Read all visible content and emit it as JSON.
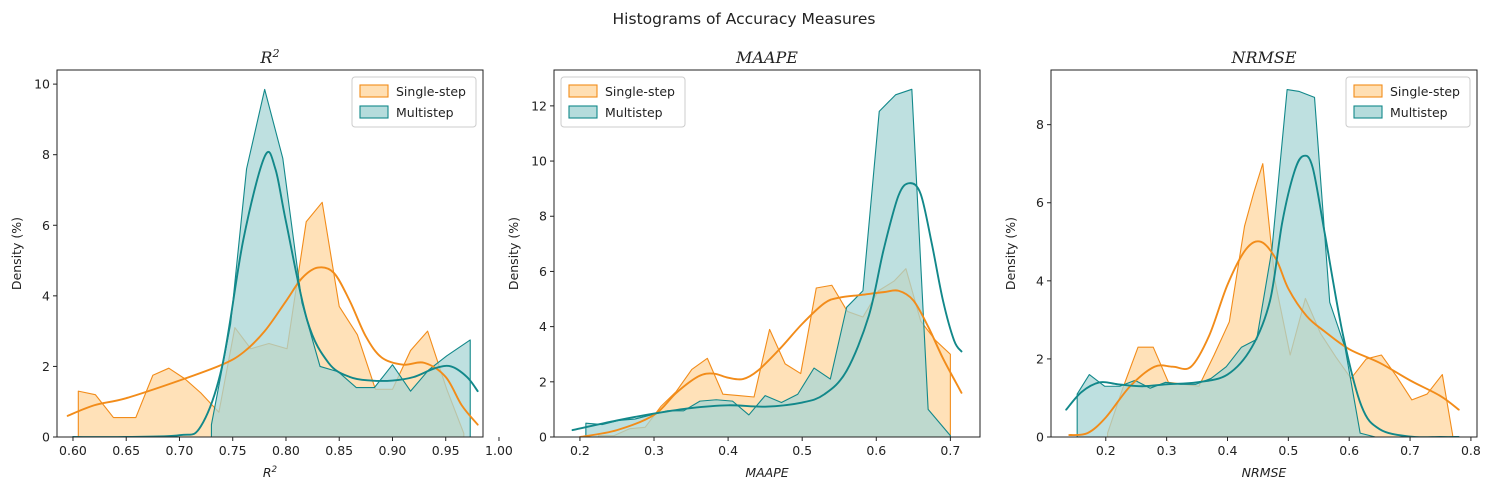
{
  "figure": {
    "suptitle": "Histograms of Accuracy Measures"
  },
  "colors": {
    "single_step_edge": "#f28c1a",
    "single_step_fill": "#ffd9a6",
    "multistep_edge": "#12888a",
    "multistep_fill": "#a8d6d6",
    "kde_single": "#f28c1a",
    "kde_multi": "#12888a"
  },
  "chart_data": [
    {
      "type": "area",
      "title": "R^2",
      "xlabel": "R^2",
      "ylabel": "Density (%)",
      "xlim": [
        0.585,
        0.985
      ],
      "ylim": [
        0,
        10.4
      ],
      "xticks": [
        0.6,
        0.65,
        0.7,
        0.75,
        0.8,
        0.85,
        0.9,
        0.95,
        1.0
      ],
      "xtick_labels": [
        "0.60",
        "0.65",
        "0.70",
        "0.75",
        "0.80",
        "0.85",
        "0.90",
        "0.95",
        "1.00"
      ],
      "yticks": [
        0,
        2,
        4,
        6,
        8,
        10
      ],
      "ytick_labels": [
        "0",
        "2",
        "4",
        "6",
        "8",
        "10"
      ],
      "legend": {
        "position": "upper right",
        "entries": [
          "Single-step",
          "Multistep"
        ]
      },
      "series": [
        {
          "name": "Single-step",
          "kind": "histogram-poly",
          "x": [
            0.605,
            0.605,
            0.621,
            0.638,
            0.659,
            0.675,
            0.69,
            0.705,
            0.72,
            0.737,
            0.752,
            0.767,
            0.784,
            0.801,
            0.819,
            0.834,
            0.85,
            0.867,
            0.884,
            0.9,
            0.917,
            0.933,
            0.951,
            0.967,
            0.967
          ],
          "y": [
            0,
            1.3,
            1.2,
            0.55,
            0.55,
            1.75,
            1.95,
            1.65,
            1.25,
            0.7,
            3.1,
            2.5,
            2.65,
            2.5,
            6.1,
            6.65,
            3.7,
            2.9,
            1.35,
            1.35,
            2.45,
            3.0,
            1.35,
            0.1,
            0
          ]
        },
        {
          "name": "Multistep",
          "kind": "histogram-poly",
          "x": [
            0.73,
            0.73,
            0.748,
            0.763,
            0.78,
            0.797,
            0.815,
            0.832,
            0.849,
            0.866,
            0.883,
            0.9,
            0.917,
            0.934,
            0.951,
            0.973,
            0.973
          ],
          "y": [
            0,
            0.35,
            3.2,
            7.6,
            9.85,
            7.9,
            3.8,
            2.0,
            1.85,
            1.4,
            1.4,
            2.05,
            1.3,
            1.9,
            2.3,
            2.75,
            0
          ]
        },
        {
          "name": "Single-step",
          "kind": "kde",
          "x": [
            0.595,
            0.62,
            0.65,
            0.7,
            0.74,
            0.76,
            0.78,
            0.8,
            0.815,
            0.83,
            0.845,
            0.86,
            0.875,
            0.89,
            0.91,
            0.93,
            0.95,
            0.965,
            0.98
          ],
          "y": [
            0.6,
            0.9,
            1.1,
            1.6,
            2.05,
            2.4,
            3.0,
            3.85,
            4.5,
            4.8,
            4.65,
            3.85,
            2.85,
            2.25,
            2.05,
            2.1,
            1.7,
            0.9,
            0.35
          ]
        },
        {
          "name": "Multistep",
          "kind": "kde",
          "x": [
            0.6,
            0.65,
            0.7,
            0.72,
            0.74,
            0.76,
            0.78,
            0.79,
            0.8,
            0.82,
            0.84,
            0.86,
            0.88,
            0.9,
            0.92,
            0.94,
            0.955,
            0.97,
            0.98
          ],
          "y": [
            0,
            0,
            0.05,
            0.3,
            2.0,
            5.6,
            7.95,
            7.6,
            6.1,
            3.3,
            2.1,
            1.7,
            1.6,
            1.6,
            1.7,
            1.95,
            2.0,
            1.7,
            1.3
          ]
        }
      ]
    },
    {
      "type": "area",
      "title": "MAAPE",
      "xlabel": "MAAPE",
      "ylabel": "Density (%)",
      "xlim": [
        0.165,
        0.74
      ],
      "ylim": [
        0,
        13.3
      ],
      "xticks": [
        0.2,
        0.3,
        0.4,
        0.5,
        0.6,
        0.7
      ],
      "xtick_labels": [
        "0.2",
        "0.3",
        "0.4",
        "0.5",
        "0.6",
        "0.7"
      ],
      "yticks": [
        0,
        2,
        4,
        6,
        8,
        10,
        12
      ],
      "ytick_labels": [
        "0",
        "2",
        "4",
        "6",
        "8",
        "10",
        "12"
      ],
      "legend": {
        "position": "upper left",
        "entries": [
          "Single-step",
          "Multistep"
        ]
      },
      "series": [
        {
          "name": "Single-step",
          "kind": "histogram-poly",
          "x": [
            0.225,
            0.225,
            0.246,
            0.267,
            0.288,
            0.309,
            0.33,
            0.351,
            0.372,
            0.393,
            0.414,
            0.435,
            0.456,
            0.477,
            0.498,
            0.519,
            0.54,
            0.561,
            0.582,
            0.603,
            0.624,
            0.64,
            0.66,
            0.68,
            0.7,
            0.7
          ],
          "y": [
            0,
            0.05,
            0.05,
            0.3,
            0.35,
            1.1,
            1.65,
            2.45,
            2.85,
            1.55,
            1.5,
            1.45,
            3.9,
            2.65,
            2.3,
            5.4,
            5.5,
            4.55,
            4.35,
            5.3,
            5.65,
            6.1,
            4.2,
            3.5,
            3.0,
            0
          ]
        },
        {
          "name": "Multistep",
          "kind": "histogram-poly",
          "x": [
            0.208,
            0.208,
            0.23,
            0.252,
            0.274,
            0.296,
            0.318,
            0.34,
            0.362,
            0.384,
            0.406,
            0.428,
            0.45,
            0.472,
            0.494,
            0.516,
            0.538,
            0.56,
            0.582,
            0.604,
            0.626,
            0.648,
            0.67,
            0.7,
            0.7
          ],
          "y": [
            0,
            0.5,
            0.45,
            0.6,
            0.65,
            0.8,
            0.95,
            0.95,
            1.3,
            1.35,
            1.3,
            0.8,
            1.5,
            1.25,
            1.55,
            2.5,
            2.1,
            4.7,
            5.3,
            11.8,
            12.4,
            12.6,
            1.0,
            0.05,
            0
          ]
        },
        {
          "name": "Single-step",
          "kind": "kde",
          "x": [
            0.2,
            0.25,
            0.3,
            0.33,
            0.36,
            0.38,
            0.4,
            0.42,
            0.44,
            0.47,
            0.5,
            0.53,
            0.55,
            0.58,
            0.61,
            0.63,
            0.65,
            0.67,
            0.69,
            0.71,
            0.715
          ],
          "y": [
            0.0,
            0.25,
            0.8,
            1.6,
            2.2,
            2.3,
            2.15,
            2.1,
            2.4,
            3.2,
            4.1,
            4.85,
            5.05,
            5.15,
            5.25,
            5.3,
            4.95,
            4.0,
            2.85,
            1.85,
            1.6
          ]
        },
        {
          "name": "Multistep",
          "kind": "kde",
          "x": [
            0.19,
            0.25,
            0.3,
            0.35,
            0.4,
            0.45,
            0.5,
            0.53,
            0.56,
            0.59,
            0.61,
            0.63,
            0.645,
            0.66,
            0.675,
            0.69,
            0.705,
            0.715
          ],
          "y": [
            0.25,
            0.6,
            0.85,
            1.05,
            1.15,
            1.1,
            1.25,
            1.55,
            2.4,
            4.4,
            6.8,
            8.75,
            9.2,
            8.8,
            7.0,
            4.95,
            3.5,
            3.1
          ]
        }
      ]
    },
    {
      "type": "area",
      "title": "NRMSE",
      "xlabel": "NRMSE",
      "ylabel": "Density (%)",
      "xlim": [
        0.11,
        0.81
      ],
      "ylim": [
        0,
        9.4
      ],
      "xticks": [
        0.2,
        0.3,
        0.4,
        0.5,
        0.6,
        0.7,
        0.8
      ],
      "xtick_labels": [
        "0.2",
        "0.3",
        "0.4",
        "0.5",
        "0.6",
        "0.7",
        "0.8"
      ],
      "yticks": [
        0,
        2,
        4,
        6,
        8
      ],
      "ytick_labels": [
        "0",
        "2",
        "4",
        "6",
        "8"
      ],
      "legend": {
        "position": "upper right",
        "entries": [
          "Single-step",
          "Multistep"
        ]
      },
      "series": [
        {
          "name": "Single-step",
          "kind": "histogram-poly",
          "x": [
            0.203,
            0.203,
            0.228,
            0.253,
            0.278,
            0.303,
            0.328,
            0.353,
            0.378,
            0.403,
            0.428,
            0.443,
            0.458,
            0.478,
            0.503,
            0.528,
            0.553,
            0.578,
            0.603,
            0.628,
            0.653,
            0.678,
            0.703,
            0.728,
            0.753,
            0.77,
            0.77
          ],
          "y": [
            0,
            0.1,
            1.25,
            2.3,
            2.3,
            1.4,
            1.35,
            1.3,
            2.1,
            2.95,
            5.4,
            6.25,
            7.0,
            4.0,
            2.1,
            3.55,
            2.65,
            2.05,
            1.5,
            2.0,
            2.1,
            1.55,
            0.95,
            1.1,
            1.6,
            0.05,
            0
          ]
        },
        {
          "name": "Multistep",
          "kind": "histogram-poly",
          "x": [
            0.153,
            0.153,
            0.173,
            0.198,
            0.223,
            0.248,
            0.273,
            0.298,
            0.323,
            0.348,
            0.373,
            0.398,
            0.423,
            0.448,
            0.473,
            0.498,
            0.518,
            0.543,
            0.568,
            0.593,
            0.618,
            0.643,
            0.643
          ],
          "y": [
            0,
            1.1,
            1.6,
            1.3,
            1.3,
            1.45,
            1.25,
            1.4,
            1.35,
            1.35,
            1.5,
            1.8,
            2.3,
            2.5,
            4.8,
            8.9,
            8.85,
            8.7,
            3.45,
            2.3,
            0.1,
            0.0,
            0
          ]
        },
        {
          "name": "Single-step",
          "kind": "kde",
          "x": [
            0.14,
            0.17,
            0.2,
            0.24,
            0.28,
            0.31,
            0.34,
            0.37,
            0.4,
            0.43,
            0.455,
            0.48,
            0.5,
            0.53,
            0.56,
            0.6,
            0.65,
            0.7,
            0.75,
            0.78
          ],
          "y": [
            0.05,
            0.1,
            0.5,
            1.3,
            1.8,
            1.8,
            1.8,
            2.6,
            3.9,
            4.8,
            5.0,
            4.55,
            3.8,
            3.1,
            2.7,
            2.25,
            1.9,
            1.45,
            1.05,
            0.7
          ]
        },
        {
          "name": "Multistep",
          "kind": "kde",
          "x": [
            0.135,
            0.16,
            0.19,
            0.22,
            0.26,
            0.3,
            0.35,
            0.4,
            0.44,
            0.47,
            0.49,
            0.51,
            0.525,
            0.54,
            0.56,
            0.59,
            0.62,
            0.65,
            0.7,
            0.75,
            0.78
          ],
          "y": [
            0.7,
            1.15,
            1.4,
            1.35,
            1.3,
            1.35,
            1.4,
            1.6,
            2.3,
            3.5,
            5.5,
            6.8,
            7.2,
            6.9,
            5.2,
            2.6,
            0.8,
            0.2,
            0.01,
            0.0,
            0.0
          ]
        }
      ]
    }
  ]
}
